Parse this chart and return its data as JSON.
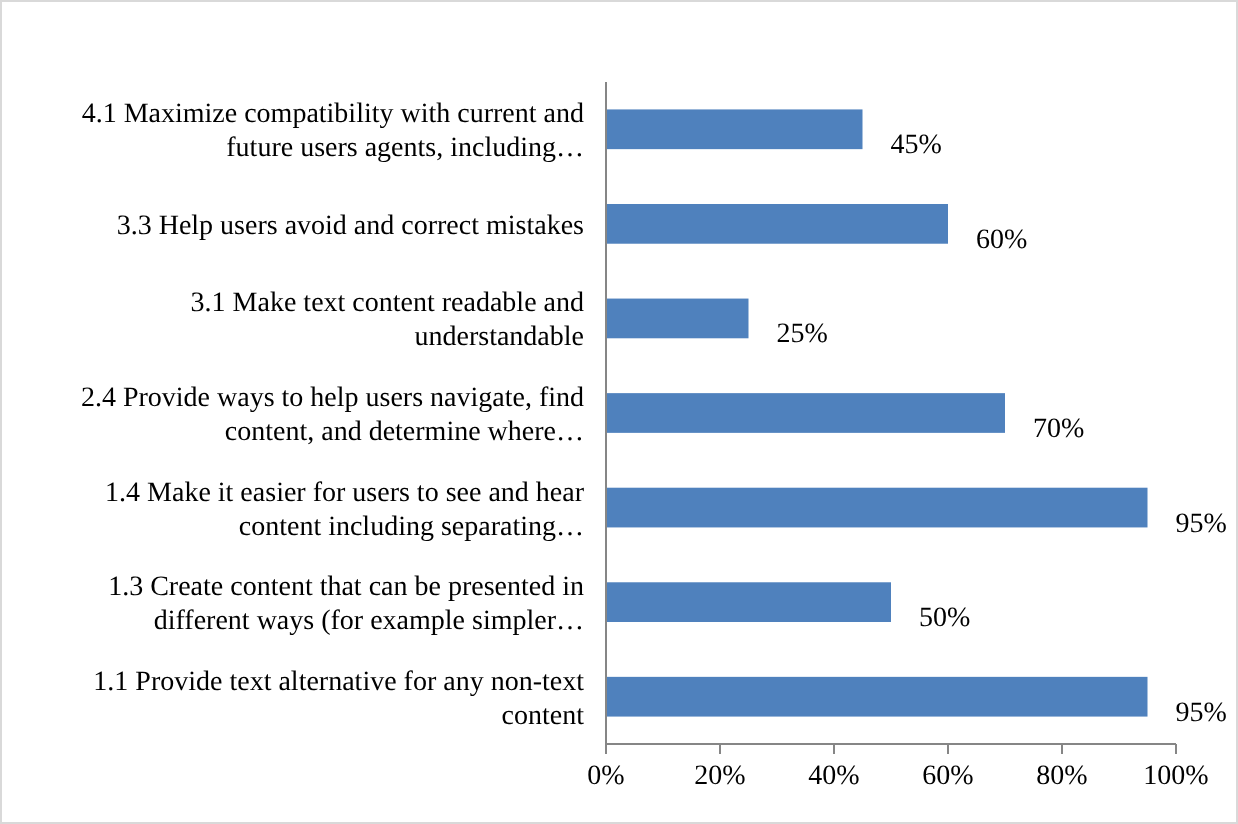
{
  "chart_data": {
    "type": "bar",
    "orientation": "horizontal",
    "categories": [
      "4.1 Maximize compatibility with current and future users agents, including…",
      "3.3 Help users avoid and correct mistakes",
      "3.1 Make text content readable and understandable",
      "2.4 Provide ways to help users navigate, find content, and determine where…",
      "1.4 Make it easier for users to see and hear content including separating…",
      "1.3 Create content that can be presented in different ways (for example simpler…",
      "1.1 Provide text alternative for any non-text content"
    ],
    "values": [
      45,
      60,
      25,
      70,
      95,
      50,
      95
    ],
    "value_labels": [
      "45%",
      "60%",
      "25%",
      "70%",
      "95%",
      "50%",
      "95%"
    ],
    "color": "#4f81bd",
    "xlim": [
      0,
      100
    ],
    "xticks": [
      {
        "value": 0,
        "label": "0%"
      },
      {
        "value": 20,
        "label": "20%"
      },
      {
        "value": 40,
        "label": "40%"
      },
      {
        "value": 60,
        "label": "60%"
      },
      {
        "value": 80,
        "label": "80%"
      },
      {
        "value": 100,
        "label": "100%"
      }
    ],
    "grid": false
  }
}
